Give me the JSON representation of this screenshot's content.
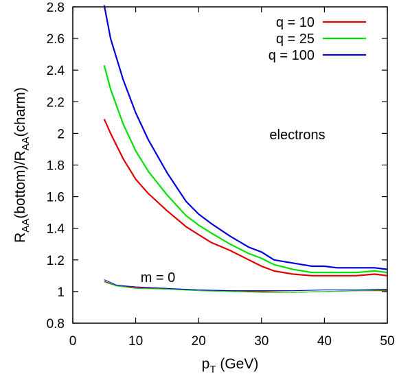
{
  "chart_data": {
    "type": "line",
    "xlabel": "p",
    "xlabel_sub": "T",
    "xlabel_unit": " (GeV)",
    "ylabel_parts": [
      "R",
      "AA",
      "(bottom)/R",
      "AA",
      "(charm)"
    ],
    "xlim": [
      0,
      50
    ],
    "ylim": [
      0.8,
      2.8
    ],
    "xticks": [
      0,
      10,
      20,
      30,
      40,
      50
    ],
    "yticks": [
      0.8,
      1,
      1.2,
      1.4,
      1.6,
      1.8,
      2,
      2.2,
      2.4,
      2.6,
      2.8
    ],
    "grid": false,
    "legend_position": "top-right",
    "annotations": {
      "main": "electrons",
      "lower": "m = 0"
    },
    "series": [
      {
        "name": "q = 10",
        "color": "#e00000",
        "x": [
          5,
          6,
          8,
          10,
          12,
          15,
          18,
          20,
          22,
          25,
          28,
          30,
          32,
          35,
          38,
          40,
          42,
          45,
          48,
          50
        ],
        "values": [
          2.09,
          2.0,
          1.84,
          1.71,
          1.62,
          1.51,
          1.41,
          1.36,
          1.31,
          1.26,
          1.2,
          1.16,
          1.13,
          1.11,
          1.1,
          1.1,
          1.1,
          1.1,
          1.11,
          1.1
        ]
      },
      {
        "name": "q = 25",
        "color": "#00e000",
        "x": [
          5,
          6,
          8,
          10,
          12,
          15,
          18,
          20,
          22,
          25,
          28,
          30,
          32,
          35,
          38,
          40,
          42,
          45,
          48,
          50
        ],
        "values": [
          2.43,
          2.28,
          2.06,
          1.89,
          1.76,
          1.61,
          1.48,
          1.42,
          1.37,
          1.3,
          1.24,
          1.21,
          1.17,
          1.14,
          1.12,
          1.12,
          1.12,
          1.12,
          1.13,
          1.12
        ]
      },
      {
        "name": "q = 100",
        "color": "#0000e0",
        "x": [
          5,
          6,
          8,
          10,
          12,
          15,
          18,
          20,
          22,
          25,
          28,
          30,
          32,
          35,
          38,
          40,
          42,
          45,
          48,
          50
        ],
        "values": [
          2.81,
          2.6,
          2.34,
          2.13,
          1.96,
          1.75,
          1.57,
          1.49,
          1.43,
          1.35,
          1.28,
          1.25,
          1.2,
          1.18,
          1.16,
          1.16,
          1.15,
          1.15,
          1.15,
          1.14
        ]
      },
      {
        "name": "",
        "group": "m = 0",
        "color": "#e00000",
        "x": [
          5,
          7,
          10,
          15,
          20,
          25,
          30,
          35,
          40,
          45,
          50
        ],
        "values": [
          1.065,
          1.035,
          1.025,
          1.015,
          1.01,
          1.005,
          1.0,
          0.995,
          1.0,
          1.005,
          1.005
        ]
      },
      {
        "name": "",
        "group": "m = 0",
        "color": "#00e000",
        "x": [
          5,
          7,
          10,
          15,
          20,
          25,
          30,
          35,
          40,
          45,
          50
        ],
        "values": [
          1.06,
          1.035,
          1.02,
          1.015,
          1.005,
          1.0,
          0.995,
          0.995,
          1.0,
          1.005,
          1.01
        ]
      },
      {
        "name": "",
        "group": "m = 0",
        "color": "#0000e0",
        "x": [
          5,
          7,
          10,
          15,
          20,
          25,
          30,
          35,
          40,
          45,
          50
        ],
        "values": [
          1.075,
          1.04,
          1.03,
          1.02,
          1.01,
          1.005,
          1.005,
          1.005,
          1.01,
          1.01,
          1.015
        ]
      }
    ]
  }
}
